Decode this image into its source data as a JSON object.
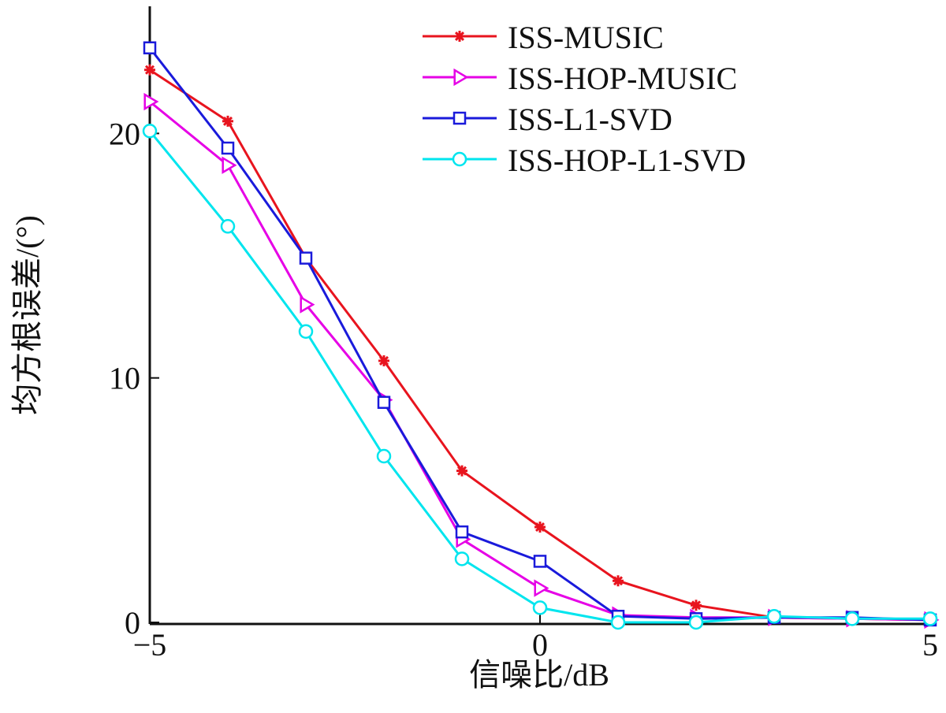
{
  "chart_data": {
    "type": "line",
    "xlabel": "信噪比/dB",
    "ylabel": "均方根误差/(°)",
    "xlim": [
      -5,
      5
    ],
    "ylim": [
      0,
      25.2
    ],
    "xticks": [
      -5,
      0,
      5
    ],
    "yticks": [
      0,
      10,
      20
    ],
    "grid": false,
    "legend_position": "top-right",
    "x": [
      -5,
      -4,
      -3,
      -2,
      -1,
      0,
      1,
      2,
      3,
      4,
      5
    ],
    "series": [
      {
        "name": "ISS-MUSIC",
        "color": "#e8141e",
        "marker": "asterisk",
        "values": [
          22.6,
          20.5,
          14.9,
          10.7,
          6.2,
          3.9,
          1.7,
          0.7,
          0.2,
          0.15,
          0.1
        ]
      },
      {
        "name": "ISS-HOP-MUSIC",
        "color": "#e600e6",
        "marker": "triangle-right",
        "values": [
          21.3,
          18.7,
          13.0,
          9.1,
          3.4,
          1.4,
          0.3,
          0.2,
          0.2,
          0.15,
          0.1
        ]
      },
      {
        "name": "ISS-L1-SVD",
        "color": "#1a1adb",
        "marker": "square",
        "values": [
          23.5,
          19.4,
          14.9,
          9.0,
          3.7,
          2.5,
          0.25,
          0.15,
          0.2,
          0.2,
          0.1
        ]
      },
      {
        "name": "ISS-HOP-L1-SVD",
        "color": "#00e5ee",
        "marker": "circle",
        "values": [
          20.1,
          16.2,
          11.9,
          6.8,
          2.6,
          0.6,
          0.0,
          0.0,
          0.25,
          0.15,
          0.15
        ]
      }
    ]
  }
}
